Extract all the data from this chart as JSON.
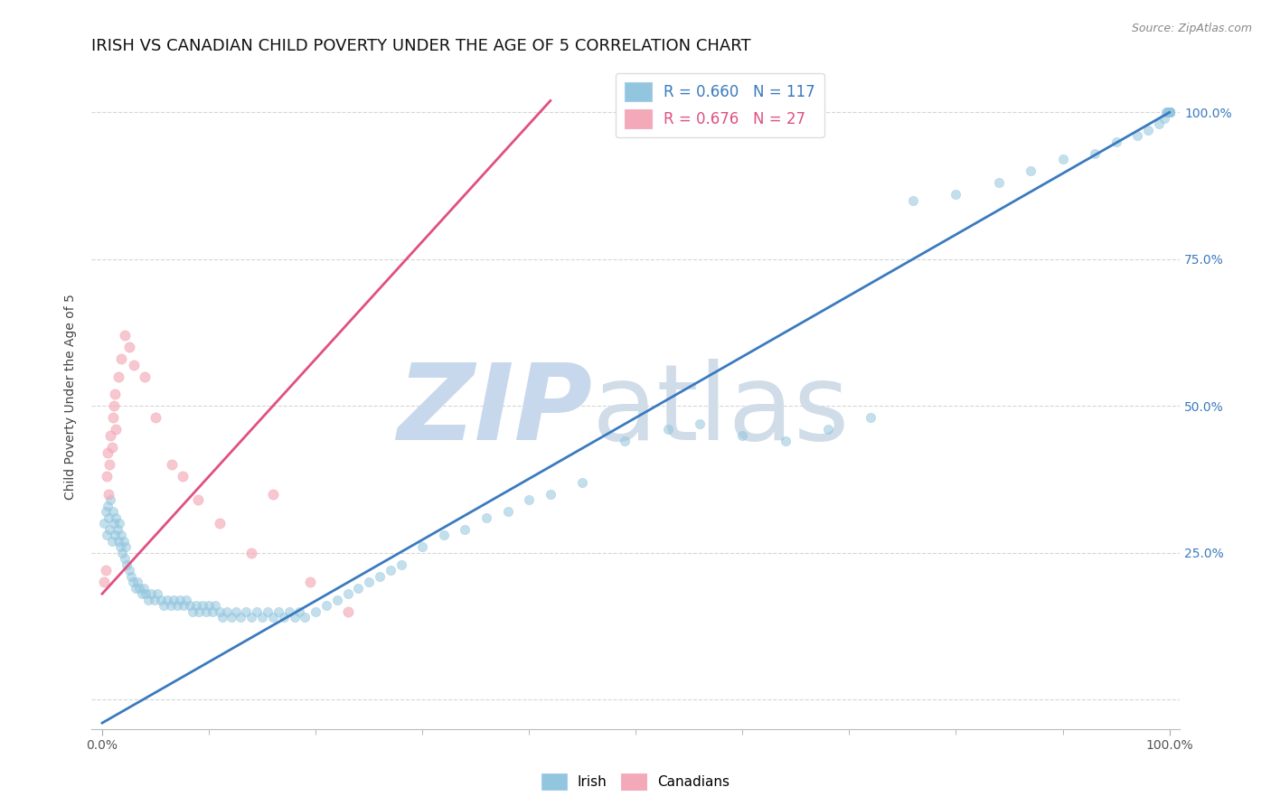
{
  "title": "IRISH VS CANADIAN CHILD POVERTY UNDER THE AGE OF 5 CORRELATION CHART",
  "source_text": "Source: ZipAtlas.com",
  "ylabel": "Child Poverty Under the Age of 5",
  "irish_R": 0.66,
  "irish_N": 117,
  "canadian_R": 0.676,
  "canadian_N": 27,
  "irish_color": "#92c5de",
  "canadian_color": "#f4a9b8",
  "irish_line_color": "#3a7abf",
  "canadian_line_color": "#e05080",
  "background_color": "#ffffff",
  "grid_color": "#cccccc",
  "watermark_zip_color": "#c8d8ec",
  "watermark_atlas_color": "#d0dde8",
  "right_tick_color": "#3a7abf",
  "title_fontsize": 13,
  "axis_label_fontsize": 10,
  "tick_fontsize": 10,
  "legend_fontsize": 12,
  "source_fontsize": 9,
  "irish_scatter": {
    "x": [
      0.002,
      0.003,
      0.004,
      0.005,
      0.006,
      0.007,
      0.008,
      0.009,
      0.01,
      0.011,
      0.012,
      0.013,
      0.014,
      0.015,
      0.016,
      0.017,
      0.018,
      0.019,
      0.02,
      0.021,
      0.022,
      0.023,
      0.025,
      0.027,
      0.029,
      0.031,
      0.033,
      0.035,
      0.037,
      0.039,
      0.041,
      0.043,
      0.046,
      0.049,
      0.052,
      0.055,
      0.058,
      0.061,
      0.064,
      0.067,
      0.07,
      0.073,
      0.076,
      0.079,
      0.082,
      0.085,
      0.088,
      0.091,
      0.094,
      0.097,
      0.1,
      0.103,
      0.106,
      0.11,
      0.113,
      0.117,
      0.121,
      0.125,
      0.13,
      0.135,
      0.14,
      0.145,
      0.15,
      0.155,
      0.16,
      0.165,
      0.17,
      0.175,
      0.18,
      0.185,
      0.19,
      0.2,
      0.21,
      0.22,
      0.23,
      0.24,
      0.25,
      0.26,
      0.27,
      0.28,
      0.3,
      0.32,
      0.34,
      0.36,
      0.38,
      0.4,
      0.42,
      0.45,
      0.49,
      0.53,
      0.56,
      0.6,
      0.64,
      0.68,
      0.72,
      0.76,
      0.8,
      0.84,
      0.87,
      0.9,
      0.93,
      0.95,
      0.97,
      0.98,
      0.99,
      0.995,
      0.997,
      0.998,
      0.999,
      1.0,
      1.0,
      1.0,
      1.0,
      1.0,
      1.0,
      1.0,
      1.0
    ],
    "y": [
      0.3,
      0.32,
      0.28,
      0.33,
      0.31,
      0.29,
      0.34,
      0.27,
      0.32,
      0.3,
      0.28,
      0.31,
      0.29,
      0.27,
      0.3,
      0.26,
      0.28,
      0.25,
      0.27,
      0.24,
      0.26,
      0.23,
      0.22,
      0.21,
      0.2,
      0.19,
      0.2,
      0.19,
      0.18,
      0.19,
      0.18,
      0.17,
      0.18,
      0.17,
      0.18,
      0.17,
      0.16,
      0.17,
      0.16,
      0.17,
      0.16,
      0.17,
      0.16,
      0.17,
      0.16,
      0.15,
      0.16,
      0.15,
      0.16,
      0.15,
      0.16,
      0.15,
      0.16,
      0.15,
      0.14,
      0.15,
      0.14,
      0.15,
      0.14,
      0.15,
      0.14,
      0.15,
      0.14,
      0.15,
      0.14,
      0.15,
      0.14,
      0.15,
      0.14,
      0.15,
      0.14,
      0.15,
      0.16,
      0.17,
      0.18,
      0.19,
      0.2,
      0.21,
      0.22,
      0.23,
      0.26,
      0.28,
      0.29,
      0.31,
      0.32,
      0.34,
      0.35,
      0.37,
      0.44,
      0.46,
      0.47,
      0.45,
      0.44,
      0.46,
      0.48,
      0.85,
      0.86,
      0.88,
      0.9,
      0.92,
      0.93,
      0.95,
      0.96,
      0.97,
      0.98,
      0.99,
      1.0,
      1.0,
      1.0,
      1.0,
      1.0,
      1.0,
      1.0,
      1.0,
      1.0,
      1.0,
      1.0
    ]
  },
  "canadian_scatter": {
    "x": [
      0.002,
      0.003,
      0.004,
      0.005,
      0.006,
      0.007,
      0.008,
      0.009,
      0.01,
      0.011,
      0.012,
      0.013,
      0.015,
      0.018,
      0.021,
      0.025,
      0.03,
      0.04,
      0.05,
      0.065,
      0.075,
      0.09,
      0.11,
      0.14,
      0.16,
      0.195,
      0.23
    ],
    "y": [
      0.2,
      0.22,
      0.38,
      0.42,
      0.35,
      0.4,
      0.45,
      0.43,
      0.48,
      0.5,
      0.52,
      0.46,
      0.55,
      0.58,
      0.62,
      0.6,
      0.57,
      0.55,
      0.48,
      0.4,
      0.38,
      0.34,
      0.3,
      0.25,
      0.35,
      0.2,
      0.15
    ]
  },
  "irish_line": {
    "x0": 0.0,
    "y0": -0.04,
    "x1": 1.0,
    "y1": 1.0
  },
  "canadian_line": {
    "x0": 0.0,
    "y0": 0.18,
    "x1": 0.42,
    "y1": 1.02
  },
  "xlim": [
    0.0,
    1.0
  ],
  "ylim": [
    -0.05,
    1.08
  ],
  "yticks": [
    0.0,
    0.25,
    0.5,
    0.75,
    1.0
  ],
  "right_ytick_labels": [
    "",
    "25.0%",
    "50.0%",
    "75.0%",
    "100.0%"
  ],
  "xticks_major": [
    0.0,
    1.0
  ],
  "xtick_labels": [
    "0.0%",
    "100.0%"
  ],
  "xticks_minor": [
    0.1,
    0.2,
    0.3,
    0.4,
    0.5,
    0.6,
    0.7,
    0.8,
    0.9
  ]
}
